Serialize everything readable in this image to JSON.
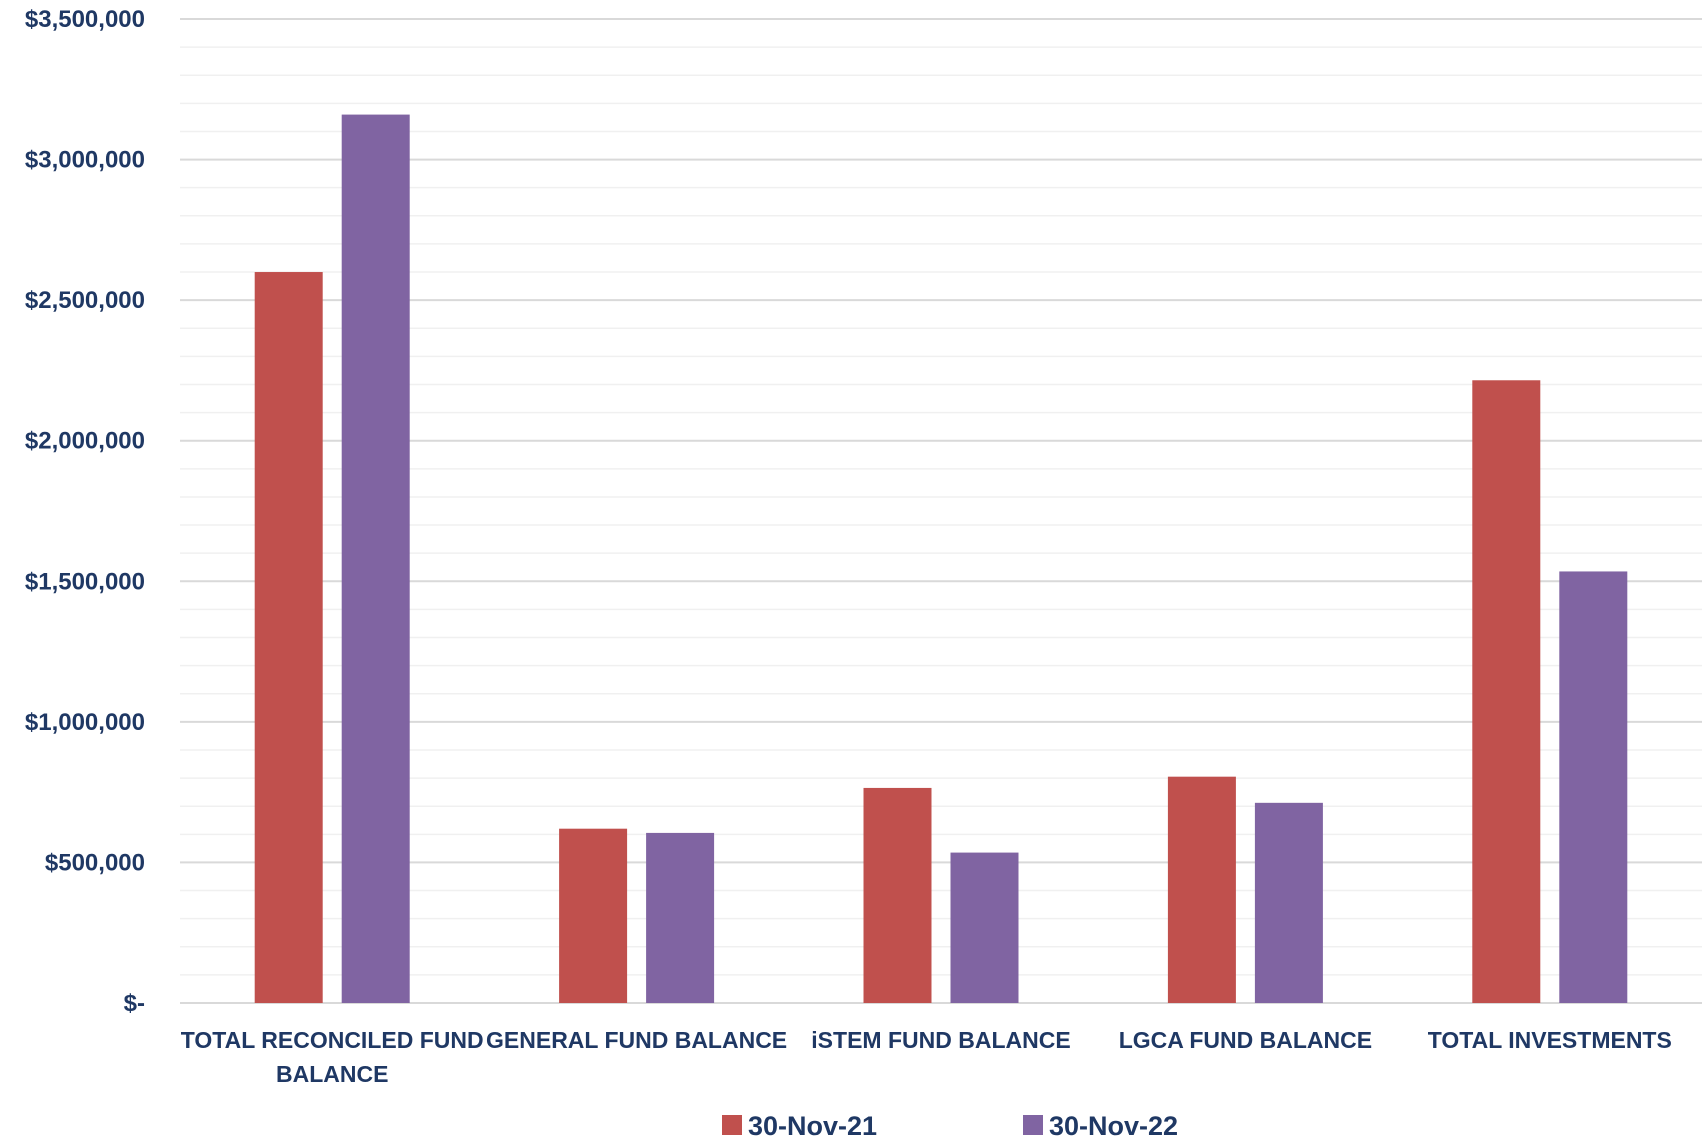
{
  "chart_data": {
    "type": "bar",
    "title": "",
    "xlabel": "",
    "ylabel": "",
    "categories": [
      "TOTAL RECONCILED FUND BALANCE",
      "GENERAL FUND BALANCE",
      "iSTEM FUND BALANCE",
      "LGCA FUND BALANCE",
      "TOTAL INVESTMENTS"
    ],
    "category_lines": [
      [
        "TOTAL RECONCILED FUND",
        "BALANCE"
      ],
      [
        "GENERAL FUND BALANCE"
      ],
      [
        "iSTEM FUND BALANCE"
      ],
      [
        "LGCA FUND BALANCE"
      ],
      [
        "TOTAL INVESTMENTS"
      ]
    ],
    "series": [
      {
        "name": "30-Nov-21",
        "color": "#c0504d",
        "values": [
          2600000,
          620000,
          765000,
          805000,
          2215000
        ]
      },
      {
        "name": "30-Nov-22",
        "color": "#8064a2",
        "values": [
          3160000,
          605000,
          535000,
          712000,
          1535000
        ]
      }
    ],
    "ylim": [
      0,
      3500000
    ],
    "y_ticks": [
      {
        "value": 0,
        "label": "$-"
      },
      {
        "value": 500000,
        "label": "$500,000"
      },
      {
        "value": 1000000,
        "label": "$1,000,000"
      },
      {
        "value": 1500000,
        "label": "$1,500,000"
      },
      {
        "value": 2000000,
        "label": "$2,000,000"
      },
      {
        "value": 2500000,
        "label": "$2,500,000"
      },
      {
        "value": 3000000,
        "label": "$3,000,000"
      },
      {
        "value": 3500000,
        "label": "$3,500,000"
      }
    ],
    "minor_step": 100000,
    "grid": true,
    "legend_position": "bottom",
    "colors": {
      "major_grid": "#d9d9d9",
      "minor_grid": "#f0f0f0",
      "text": "#1f3864"
    }
  }
}
